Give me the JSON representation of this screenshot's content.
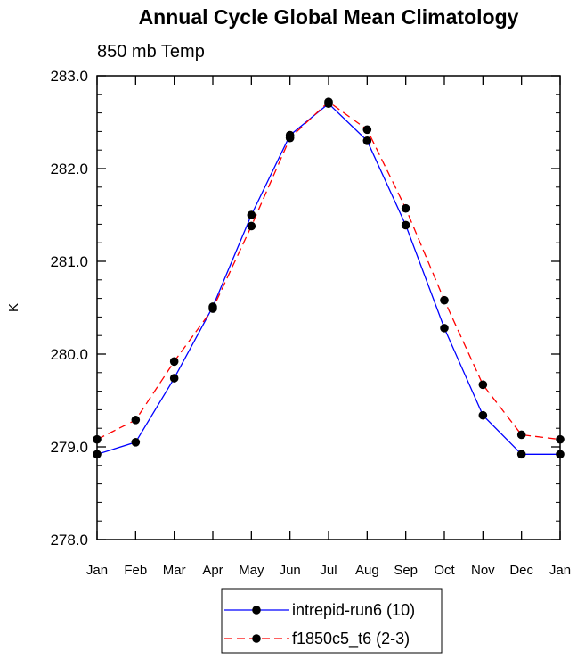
{
  "chart_data": {
    "type": "line",
    "title": "Annual Cycle Global Mean Climatology",
    "subtitle": "850 mb Temp",
    "xlabel": "",
    "ylabel": "K",
    "categories": [
      "Jan",
      "Feb",
      "Mar",
      "Apr",
      "May",
      "Jun",
      "Jul",
      "Aug",
      "Sep",
      "Oct",
      "Nov",
      "Dec",
      "Jan"
    ],
    "ylim": [
      278.0,
      283.0
    ],
    "yticks": [
      "278.0",
      "279.0",
      "280.0",
      "281.0",
      "282.0",
      "283.0"
    ],
    "series": [
      {
        "name": "intrepid-run6 (10)",
        "color": "#0000ff",
        "style": "solid",
        "values": [
          278.92,
          279.05,
          279.74,
          280.51,
          281.5,
          282.36,
          282.7,
          282.3,
          281.39,
          280.28,
          279.34,
          278.92,
          278.92
        ]
      },
      {
        "name": "f1850c5_t6 (2-3)",
        "color": "#ff0000",
        "style": "dashed",
        "values": [
          279.08,
          279.29,
          279.92,
          280.49,
          281.38,
          282.33,
          282.72,
          282.42,
          281.57,
          280.58,
          279.67,
          279.13,
          279.08
        ]
      }
    ],
    "legend": "bottom-center"
  }
}
